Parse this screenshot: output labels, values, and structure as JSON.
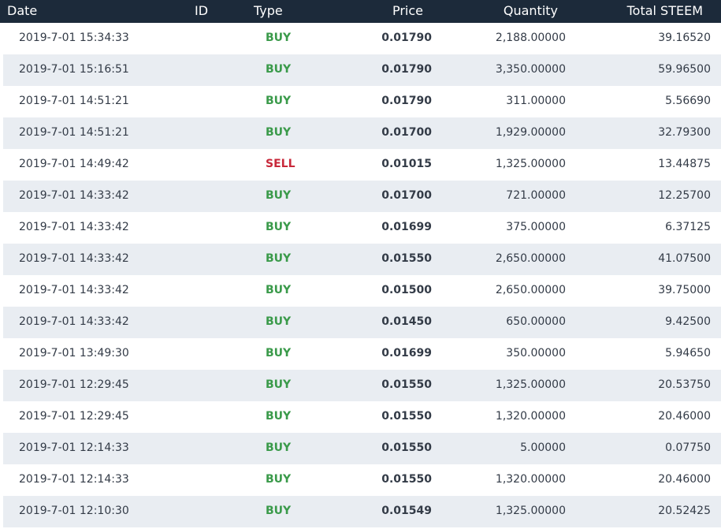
{
  "headers": {
    "date": "Date",
    "id": "ID",
    "type": "Type",
    "price": "Price",
    "quantity": "Quantity",
    "total": "Total STEEM"
  },
  "colors": {
    "header_bg": "#1c2a3a",
    "buy": "#3a9a4a",
    "sell": "#c8283a",
    "row_alt": "#e9edf2"
  },
  "rows": [
    {
      "date": "2019-7-01 15:34:33",
      "type": "BUY",
      "price": "0.01790",
      "quantity": "2,188.00000",
      "total": "39.16520"
    },
    {
      "date": "2019-7-01 15:16:51",
      "type": "BUY",
      "price": "0.01790",
      "quantity": "3,350.00000",
      "total": "59.96500"
    },
    {
      "date": "2019-7-01 14:51:21",
      "type": "BUY",
      "price": "0.01790",
      "quantity": "311.00000",
      "total": "5.56690"
    },
    {
      "date": "2019-7-01 14:51:21",
      "type": "BUY",
      "price": "0.01700",
      "quantity": "1,929.00000",
      "total": "32.79300"
    },
    {
      "date": "2019-7-01 14:49:42",
      "type": "SELL",
      "price": "0.01015",
      "quantity": "1,325.00000",
      "total": "13.44875"
    },
    {
      "date": "2019-7-01 14:33:42",
      "type": "BUY",
      "price": "0.01700",
      "quantity": "721.00000",
      "total": "12.25700"
    },
    {
      "date": "2019-7-01 14:33:42",
      "type": "BUY",
      "price": "0.01699",
      "quantity": "375.00000",
      "total": "6.37125"
    },
    {
      "date": "2019-7-01 14:33:42",
      "type": "BUY",
      "price": "0.01550",
      "quantity": "2,650.00000",
      "total": "41.07500"
    },
    {
      "date": "2019-7-01 14:33:42",
      "type": "BUY",
      "price": "0.01500",
      "quantity": "2,650.00000",
      "total": "39.75000"
    },
    {
      "date": "2019-7-01 14:33:42",
      "type": "BUY",
      "price": "0.01450",
      "quantity": "650.00000",
      "total": "9.42500"
    },
    {
      "date": "2019-7-01 13:49:30",
      "type": "BUY",
      "price": "0.01699",
      "quantity": "350.00000",
      "total": "5.94650"
    },
    {
      "date": "2019-7-01 12:29:45",
      "type": "BUY",
      "price": "0.01550",
      "quantity": "1,325.00000",
      "total": "20.53750"
    },
    {
      "date": "2019-7-01 12:29:45",
      "type": "BUY",
      "price": "0.01550",
      "quantity": "1,320.00000",
      "total": "20.46000"
    },
    {
      "date": "2019-7-01 12:14:33",
      "type": "BUY",
      "price": "0.01550",
      "quantity": "5.00000",
      "total": "0.07750"
    },
    {
      "date": "2019-7-01 12:14:33",
      "type": "BUY",
      "price": "0.01550",
      "quantity": "1,320.00000",
      "total": "20.46000"
    },
    {
      "date": "2019-7-01 12:10:30",
      "type": "BUY",
      "price": "0.01549",
      "quantity": "1,325.00000",
      "total": "20.52425"
    }
  ]
}
